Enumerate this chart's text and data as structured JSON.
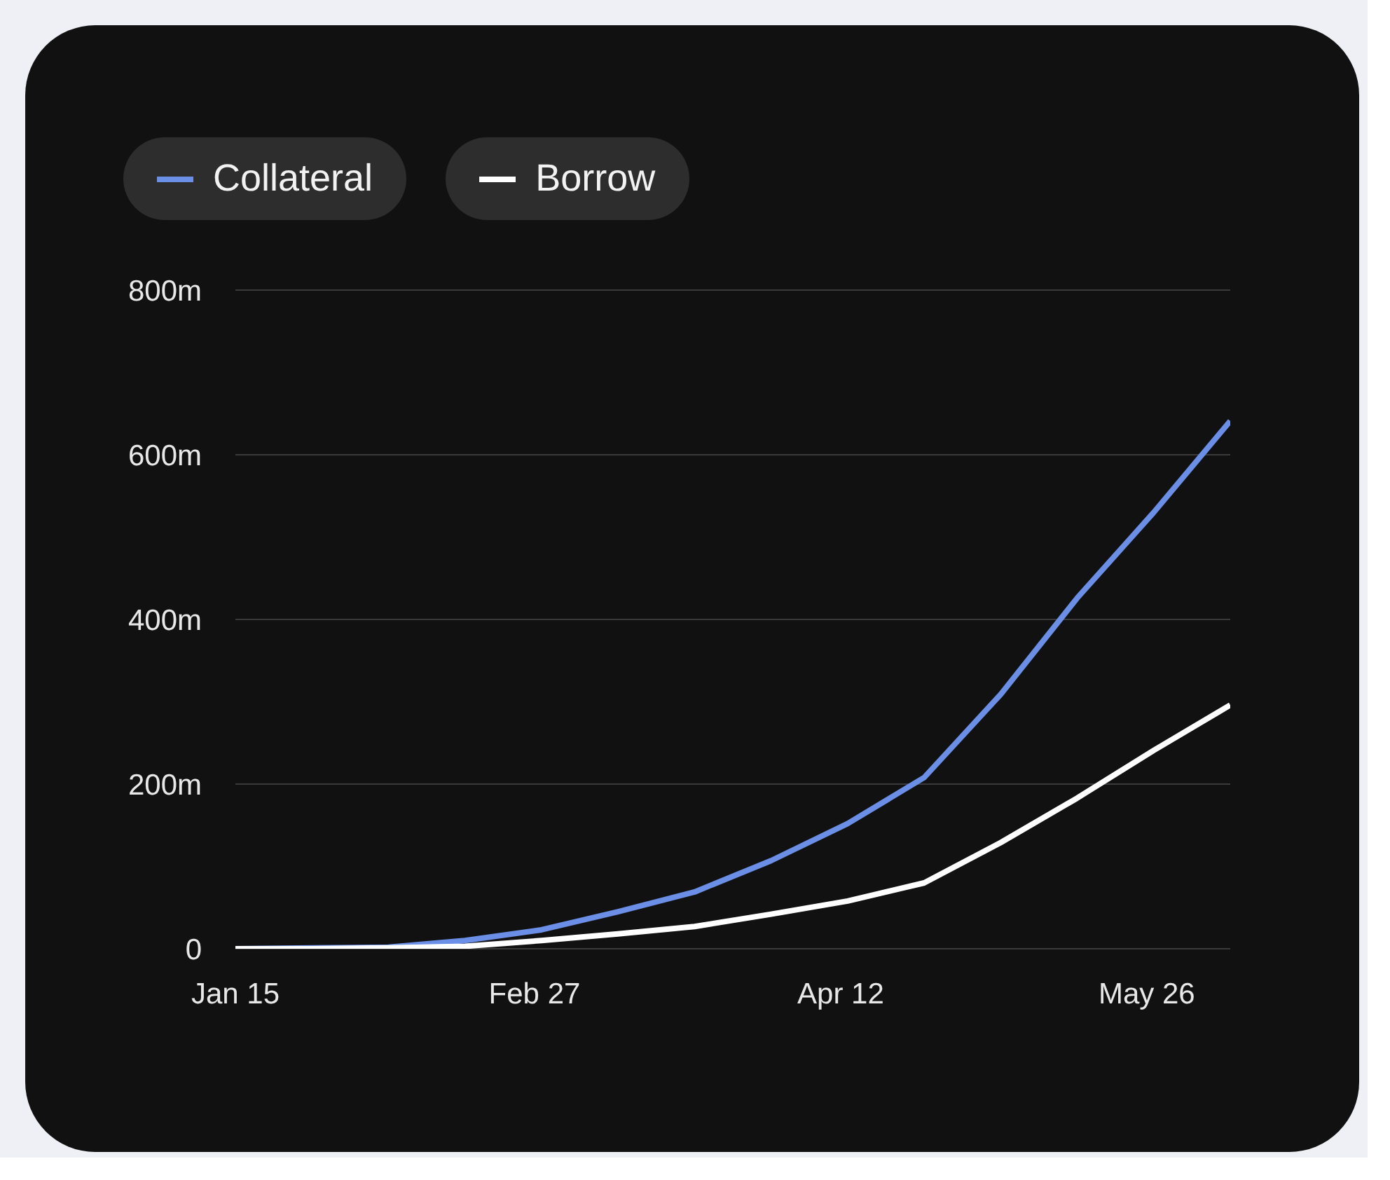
{
  "chart_data": {
    "type": "line",
    "x": [
      "--01-15",
      "--01-26",
      "--02-06",
      "--02-17",
      "--02-28",
      "--03-11",
      "--03-22",
      "--04-02",
      "--04-13",
      "--04-24",
      "--05-05",
      "--05-16",
      "--05-27",
      "--06-07"
    ],
    "series": [
      {
        "name": "Collateral",
        "color": "#6b8fe6",
        "values": [
          0,
          1,
          2,
          10,
          23,
          45,
          69,
          107,
          152,
          208,
          309,
          426,
          530,
          641
        ]
      },
      {
        "name": "Borrow",
        "color": "#ffffff",
        "values": [
          0,
          0,
          1,
          3,
          10,
          18,
          27,
          42,
          58,
          80,
          129,
          183,
          241,
          296
        ]
      }
    ],
    "xlim": [
      "--01-15",
      "--06-07"
    ],
    "xticks": [
      {
        "value": "--01-15",
        "label": "Jan 15"
      },
      {
        "value": "--02-27",
        "label": "Feb 27"
      },
      {
        "value": "--04-12",
        "label": "Apr 12"
      },
      {
        "value": "--05-26",
        "label": "May 26"
      }
    ],
    "ylim": [
      0,
      800
    ],
    "yticks": [
      0,
      {
        "value": 200,
        "label": "200m"
      },
      {
        "value": 400,
        "label": "400m"
      },
      {
        "value": 600,
        "label": "600m"
      },
      {
        "value": 800,
        "label": "800m"
      }
    ],
    "grid": "y",
    "legend": "top left",
    "marker": "none",
    "line_style": "solid"
  }
}
